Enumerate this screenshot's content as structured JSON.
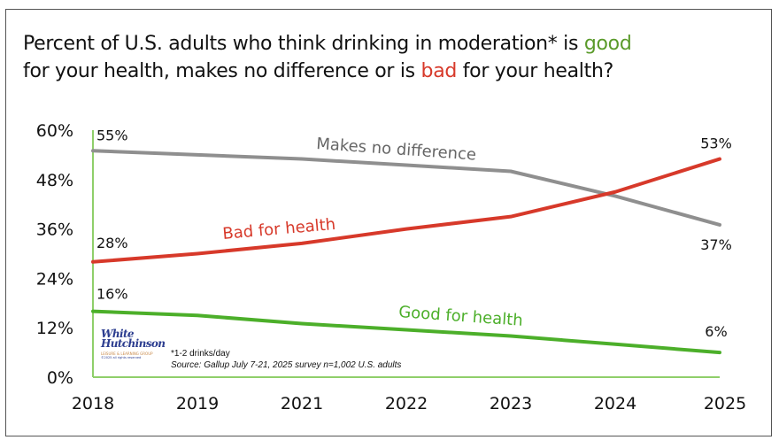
{
  "title": {
    "part1": "Percent of U.S. adults who think drinking in moderation* is ",
    "good": "good",
    "part2": "for your health, makes no difference or is ",
    "bad": "bad",
    "part3": " for your health?"
  },
  "footnote": "*1-2 drinks/day",
  "source": "Source: Gallup July 7-21, 2025 survey n=1,002 U.S. adults",
  "logo": {
    "line1": "White",
    "line2": "Hutchinson",
    "tagline": "LEISURE & LEARNING GROUP",
    "rights": "©2025 all rights reserved"
  },
  "chart_data": {
    "type": "line",
    "title": "Percent of U.S. adults who think drinking in moderation* is good for your health, makes no difference or is bad for your health?",
    "categories": [
      "2018",
      "2019",
      "2021",
      "2022",
      "2023",
      "2024",
      "2025"
    ],
    "ylim": [
      0,
      60
    ],
    "yticks": [
      "0%",
      "12%",
      "24%",
      "36%",
      "48%",
      "60%"
    ],
    "ytick_values": [
      0,
      12,
      24,
      36,
      48,
      60
    ],
    "xlabel": "",
    "ylabel": "",
    "grid": false,
    "legend": "inline labels",
    "series": [
      {
        "name": "Makes no difference",
        "color": "#8f8f8f",
        "values": [
          55,
          54,
          53,
          51.5,
          50,
          44,
          37
        ],
        "start_label": "55%",
        "end_label": "37%"
      },
      {
        "name": "Bad for health",
        "color": "#d7392a",
        "values": [
          28,
          30,
          32.5,
          36,
          39,
          45,
          53
        ],
        "start_label": "28%",
        "end_label": "53%"
      },
      {
        "name": "Good for health",
        "color": "#4caf2a",
        "values": [
          16,
          15,
          13,
          11.5,
          10,
          8,
          6
        ],
        "start_label": "16%",
        "end_label": "6%"
      }
    ]
  }
}
